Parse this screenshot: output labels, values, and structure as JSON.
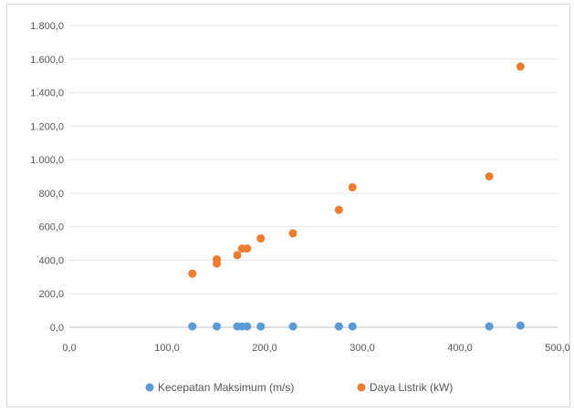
{
  "chart_data": {
    "type": "scatter",
    "title": "",
    "xlabel": "",
    "ylabel": "",
    "xlim": [
      0,
      500
    ],
    "ylim": [
      0,
      1800
    ],
    "x_ticks": [
      0,
      100,
      200,
      300,
      400,
      500
    ],
    "x_tick_labels": [
      "0,0",
      "100,0",
      "200,0",
      "300,0",
      "400,0",
      "500,0"
    ],
    "y_ticks": [
      0,
      200,
      400,
      600,
      800,
      1000,
      1200,
      1400,
      1600,
      1800
    ],
    "y_tick_labels": [
      "0,0",
      "200,0",
      "400,0",
      "600,0",
      "800,0",
      "1.000,0",
      "1.200,0",
      "1.400,0",
      "1.600,0",
      "1.800,0"
    ],
    "grid": "horizontal",
    "legend_position": "bottom",
    "series": [
      {
        "name": "Kecepatan Maksimum (m/s)",
        "color": "#5b9bd5",
        "points": [
          [
            126,
            5
          ],
          [
            151,
            5
          ],
          [
            172,
            5
          ],
          [
            177,
            5
          ],
          [
            182,
            5
          ],
          [
            196,
            5
          ],
          [
            229,
            5
          ],
          [
            276,
            5
          ],
          [
            290,
            5
          ],
          [
            430,
            5
          ],
          [
            462,
            10
          ]
        ]
      },
      {
        "name": "Daya Listrik (kW)",
        "color": "#ed7d31",
        "points": [
          [
            126,
            320
          ],
          [
            151,
            380
          ],
          [
            151,
            405
          ],
          [
            172,
            430
          ],
          [
            177,
            470
          ],
          [
            182,
            470
          ],
          [
            196,
            530
          ],
          [
            229,
            560
          ],
          [
            276,
            700
          ],
          [
            290,
            835
          ],
          [
            430,
            900
          ],
          [
            462,
            1555
          ]
        ]
      }
    ]
  }
}
